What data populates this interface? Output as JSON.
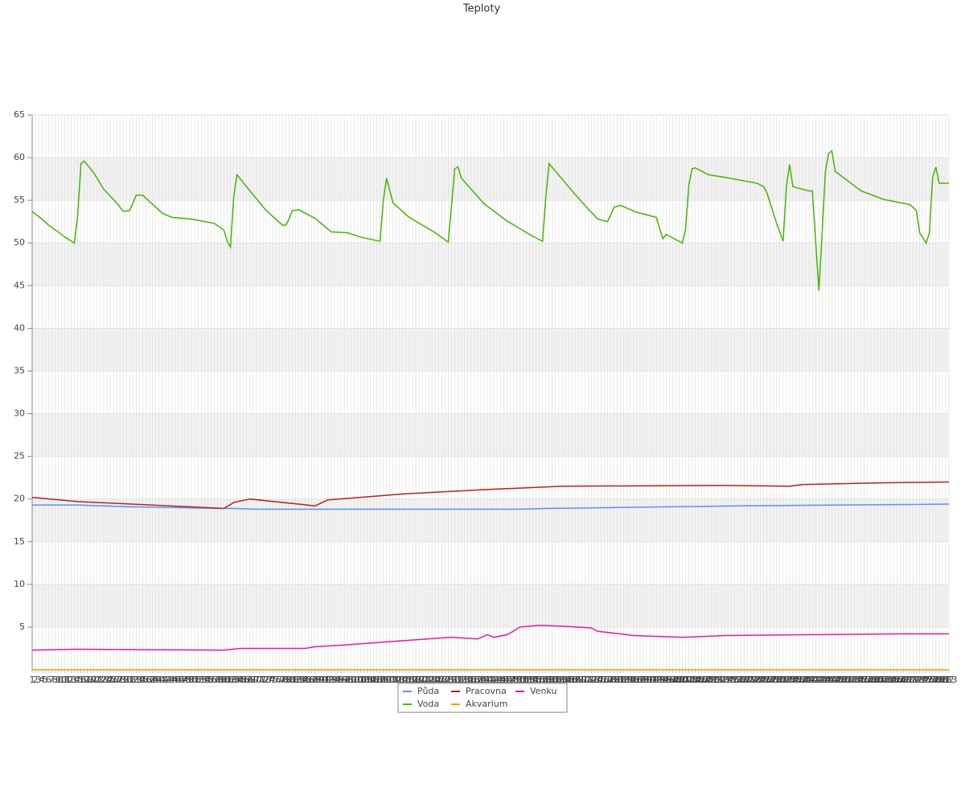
{
  "chart_data": {
    "type": "line",
    "title": "Teploty",
    "xlim": [
      1,
      283
    ],
    "xticks": [
      1,
      2,
      3,
      4,
      5,
      6,
      7,
      8,
      9,
      10,
      11,
      12,
      13,
      14,
      15,
      16,
      17,
      18,
      19,
      20,
      21,
      22,
      23,
      24,
      25,
      26,
      27,
      28,
      29,
      30,
      31,
      32,
      33,
      34,
      35,
      36,
      37,
      38,
      39,
      40,
      41,
      42,
      43,
      44,
      45,
      46,
      47,
      48,
      49,
      50,
      51,
      52,
      53,
      54,
      55,
      56,
      57,
      58,
      59,
      60,
      61,
      62,
      63,
      64,
      65,
      66,
      67,
      68,
      69,
      70,
      71,
      72,
      73,
      74,
      75,
      76,
      77,
      78,
      79,
      80,
      81,
      82,
      83,
      84,
      85,
      86,
      87,
      88,
      89,
      90,
      91,
      92,
      93,
      94,
      95,
      96,
      97,
      98,
      99,
      100,
      101,
      102,
      103,
      104,
      105,
      106,
      107,
      108,
      109,
      110,
      111,
      112,
      113,
      114,
      115,
      116,
      117,
      118,
      119,
      120,
      121,
      122,
      123,
      124,
      125,
      126,
      127,
      128,
      129,
      130,
      131,
      132,
      133,
      134,
      135,
      136,
      137,
      138,
      139,
      140,
      141,
      142,
      143,
      144,
      145,
      146,
      147,
      148,
      149,
      150,
      151,
      152,
      153,
      154,
      155,
      156,
      157,
      158,
      159,
      160,
      161,
      162,
      163,
      164,
      165,
      166,
      167,
      168,
      169,
      170,
      171,
      172,
      173,
      174,
      175,
      176,
      177,
      178,
      179,
      180,
      181,
      182,
      183,
      184,
      185,
      186,
      187,
      188,
      189,
      190,
      191,
      192,
      193,
      194,
      195,
      196,
      197,
      198,
      199,
      200,
      201,
      202,
      203,
      204,
      205,
      206,
      207,
      208,
      209,
      210,
      211,
      212,
      213,
      214,
      215,
      216,
      217,
      218,
      219,
      220,
      221,
      222,
      223,
      224,
      225,
      226,
      227,
      228,
      229,
      230,
      231,
      232,
      233,
      234,
      235,
      236,
      237,
      238,
      239,
      240,
      241,
      242,
      243,
      244,
      245,
      246,
      247,
      248,
      249,
      250,
      251,
      252,
      253,
      254,
      255,
      256,
      257,
      258,
      259,
      260,
      261,
      262,
      263,
      264,
      265,
      266,
      267,
      268,
      269,
      270,
      271,
      272,
      273,
      274,
      275,
      276,
      277,
      278,
      279,
      280,
      281,
      282,
      283
    ],
    "ylim": [
      0,
      65
    ],
    "yticks": [
      5,
      10,
      15,
      20,
      25,
      30,
      35,
      40,
      45,
      50,
      55,
      60,
      65
    ],
    "grid": true,
    "series": [
      {
        "name": "Půda",
        "color": "#5b8ff9",
        "x": [
          1,
          15,
          30,
          60,
          63,
          70,
          100,
          150,
          160,
          180,
          220,
          283
        ],
        "values": [
          19.3,
          19.3,
          19.1,
          18.9,
          18.9,
          18.8,
          18.8,
          18.8,
          18.9,
          19.0,
          19.2,
          19.4
        ]
      },
      {
        "name": "Voda",
        "color": "#44b400",
        "x": [
          1,
          4,
          6,
          9,
          11,
          14,
          15,
          16,
          17,
          20,
          23,
          27,
          29,
          31,
          33,
          35,
          37,
          41,
          44,
          50,
          57,
          60,
          61,
          62,
          63,
          64,
          68,
          73,
          78,
          79,
          80,
          81,
          83,
          88,
          93,
          98,
          102,
          108,
          109,
          110,
          112,
          117,
          125,
          129,
          131,
          132,
          133,
          140,
          147,
          154,
          158,
          159,
          160,
          162,
          168,
          172,
          175,
          178,
          180,
          182,
          187,
          193,
          195,
          196,
          198,
          201,
          202,
          203,
          204,
          205,
          209,
          214,
          224,
          226,
          227,
          229,
          230,
          232,
          233,
          234,
          235,
          240,
          241,
          243,
          244,
          245,
          246,
          247,
          248,
          256,
          263,
          271,
          273,
          274,
          276,
          277,
          278,
          279,
          280,
          283
        ],
        "values": [
          53.7,
          52.8,
          52.1,
          51.3,
          50.7,
          50.0,
          53.2,
          59.3,
          59.6,
          58.2,
          56.3,
          54.7,
          53.7,
          53.8,
          55.6,
          55.6,
          54.9,
          53.5,
          53.0,
          52.8,
          52.3,
          51.5,
          50.2,
          49.5,
          55.4,
          58.0,
          56.1,
          53.8,
          52.1,
          52.1,
          52.8,
          53.8,
          53.9,
          52.9,
          51.3,
          51.2,
          50.7,
          50.2,
          54.9,
          57.6,
          54.7,
          53.0,
          51.2,
          50.1,
          58.7,
          58.9,
          57.6,
          54.6,
          52.6,
          51.0,
          50.2,
          55.4,
          59.3,
          58.4,
          55.7,
          54.0,
          52.8,
          52.5,
          54.2,
          54.4,
          53.6,
          53.0,
          50.5,
          51.0,
          50.6,
          50.0,
          51.6,
          56.8,
          58.7,
          58.8,
          58.0,
          57.7,
          57.0,
          56.6,
          55.9,
          53.5,
          52.3,
          50.2,
          56.6,
          59.2,
          56.6,
          56.1,
          56.1,
          44.4,
          51.2,
          58.4,
          60.5,
          60.8,
          58.4,
          56.1,
          55.1,
          54.5,
          53.8,
          51.2,
          50.0,
          51.2,
          57.7,
          58.9,
          57.0,
          57.0
        ]
      },
      {
        "name": "Pracovna",
        "color": "#b22222",
        "x": [
          1,
          15,
          60,
          63,
          68,
          88,
          92,
          102,
          115,
          140,
          164,
          214,
          234,
          238,
          263,
          283
        ],
        "values": [
          20.2,
          19.7,
          18.9,
          19.6,
          20.0,
          19.2,
          19.9,
          20.2,
          20.6,
          21.1,
          21.5,
          21.6,
          21.5,
          21.7,
          21.9,
          22.0
        ]
      },
      {
        "name": "Akvarium",
        "color": "#f0a000",
        "x": [
          1,
          283
        ],
        "values": [
          0,
          0
        ]
      },
      {
        "name": "Venku",
        "color": "#e6199f",
        "x": [
          1,
          15,
          60,
          65,
          85,
          88,
          97,
          115,
          130,
          138,
          141,
          143,
          147,
          149,
          151,
          157,
          164,
          173,
          175,
          182,
          186,
          201,
          214,
          238,
          268,
          283
        ],
        "values": [
          2.3,
          2.4,
          2.3,
          2.5,
          2.5,
          2.7,
          2.9,
          3.4,
          3.8,
          3.6,
          4.1,
          3.8,
          4.1,
          4.5,
          5.0,
          5.2,
          5.1,
          4.9,
          4.5,
          4.2,
          4.0,
          3.8,
          4.0,
          4.1,
          4.2,
          4.2
        ]
      }
    ]
  }
}
